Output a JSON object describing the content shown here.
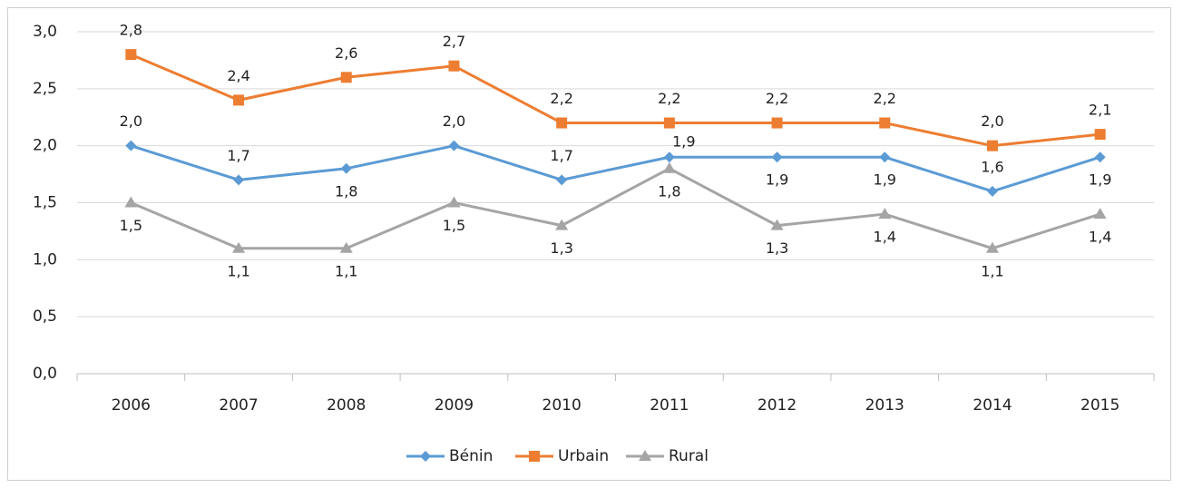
{
  "chart_data": {
    "type": "line",
    "categories": [
      "2006",
      "2007",
      "2008",
      "2009",
      "2010",
      "2011",
      "2012",
      "2013",
      "2014",
      "2015"
    ],
    "series": [
      {
        "name": "Bénin",
        "color": "#5b9bd5",
        "marker": "diamond",
        "values": [
          2.0,
          1.7,
          1.8,
          2.0,
          1.7,
          1.9,
          1.9,
          1.9,
          1.6,
          1.9
        ],
        "value_labels": [
          "2,0",
          "1,7",
          "1,8",
          "2,0",
          "1,7",
          "1,9",
          "1,9",
          "1,9",
          "1,6",
          "1,9"
        ]
      },
      {
        "name": "Urbain",
        "color": "#ed7d31",
        "marker": "square",
        "values": [
          2.8,
          2.4,
          2.6,
          2.7,
          2.2,
          2.2,
          2.2,
          2.2,
          2.0,
          2.1
        ],
        "value_labels": [
          "2,8",
          "2,4",
          "2,6",
          "2,7",
          "2,2",
          "2,2",
          "2,2",
          "2,2",
          "2,0",
          "2,1"
        ]
      },
      {
        "name": "Rural",
        "color": "#a5a5a5",
        "marker": "triangle",
        "values": [
          1.5,
          1.1,
          1.1,
          1.5,
          1.3,
          1.8,
          1.3,
          1.4,
          1.1,
          1.4
        ],
        "value_labels": [
          "1,5",
          "1,1",
          "1,1",
          "1,5",
          "1,3",
          "1,8",
          "1,3",
          "1,4",
          "1,1",
          "1,4"
        ]
      }
    ],
    "ylim": [
      0,
      3
    ],
    "yticks": [
      {
        "value": 0,
        "label": "0,0"
      },
      {
        "value": 0.5,
        "label": "0,5"
      },
      {
        "value": 1,
        "label": "1,0"
      },
      {
        "value": 1.5,
        "label": "1,5"
      },
      {
        "value": 2,
        "label": "2,0"
      },
      {
        "value": 2.5,
        "label": "2,5"
      },
      {
        "value": 3,
        "label": "3,0"
      }
    ],
    "grid": true,
    "legend": "bottom"
  }
}
